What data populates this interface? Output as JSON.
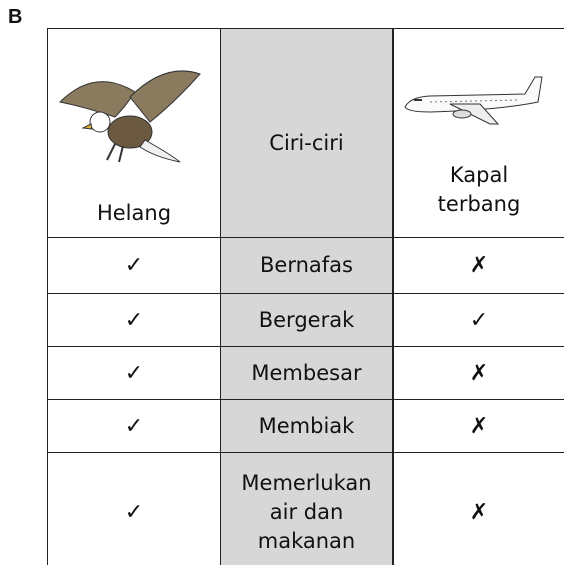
{
  "label": "B",
  "table": {
    "header": [
      "Helang",
      "Ciri-ciri",
      "Kapal terbang"
    ],
    "rows": [
      [
        "✓",
        "Bernafas",
        "✗"
      ],
      [
        "✓",
        "Bergerak",
        "✓"
      ],
      [
        "✓",
        "Membesar",
        "✗"
      ],
      [
        "✓",
        "Membiak",
        "✗"
      ],
      [
        "✓",
        "Memerlukan air dan makanan",
        "✗"
      ]
    ]
  }
}
